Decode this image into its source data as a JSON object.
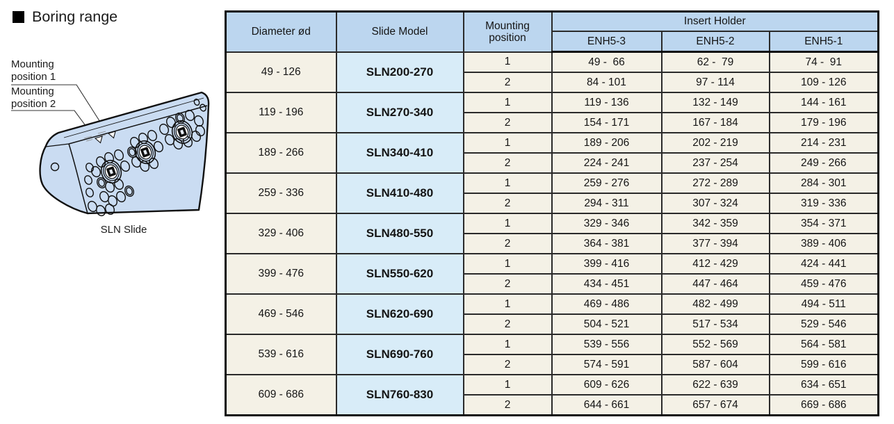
{
  "heading": {
    "text": "Boring range"
  },
  "illustration": {
    "label_position1_line1": "Mounting",
    "label_position1_line2": "position 1",
    "label_position2_line1": "Mounting",
    "label_position2_line2": "position 2",
    "caption": "SLN Slide"
  },
  "table": {
    "headers": {
      "diameter": "Diameter ød",
      "slide_model": "Slide Model",
      "mounting_line1": "Mounting",
      "mounting_line2": "position",
      "insert_holder": "Insert Holder",
      "enh_columns": [
        "ENH5-3",
        "ENH5-2",
        "ENH5-1"
      ]
    },
    "groups": [
      {
        "diameter": "49 - 126",
        "model": "SLN200-270",
        "rows": [
          {
            "position": "1",
            "values": [
              "49 -  66",
              "62 -  79",
              "74 -  91"
            ]
          },
          {
            "position": "2",
            "values": [
              "84 - 101",
              "97 - 114",
              "109 - 126"
            ]
          }
        ]
      },
      {
        "diameter": "119 - 196",
        "model": "SLN270-340",
        "rows": [
          {
            "position": "1",
            "values": [
              "119 - 136",
              "132 - 149",
              "144 - 161"
            ]
          },
          {
            "position": "2",
            "values": [
              "154 - 171",
              "167 - 184",
              "179 - 196"
            ]
          }
        ]
      },
      {
        "diameter": "189 - 266",
        "model": "SLN340-410",
        "rows": [
          {
            "position": "1",
            "values": [
              "189 - 206",
              "202 - 219",
              "214 - 231"
            ]
          },
          {
            "position": "2",
            "values": [
              "224 - 241",
              "237 - 254",
              "249 - 266"
            ]
          }
        ]
      },
      {
        "diameter": "259 - 336",
        "model": "SLN410-480",
        "rows": [
          {
            "position": "1",
            "values": [
              "259 - 276",
              "272 - 289",
              "284 - 301"
            ]
          },
          {
            "position": "2",
            "values": [
              "294 - 311",
              "307 - 324",
              "319 - 336"
            ]
          }
        ]
      },
      {
        "diameter": "329 - 406",
        "model": "SLN480-550",
        "rows": [
          {
            "position": "1",
            "values": [
              "329 - 346",
              "342 - 359",
              "354 - 371"
            ]
          },
          {
            "position": "2",
            "values": [
              "364 - 381",
              "377 - 394",
              "389 - 406"
            ]
          }
        ]
      },
      {
        "diameter": "399 - 476",
        "model": "SLN550-620",
        "rows": [
          {
            "position": "1",
            "values": [
              "399 - 416",
              "412 - 429",
              "424 - 441"
            ]
          },
          {
            "position": "2",
            "values": [
              "434 - 451",
              "447 - 464",
              "459 - 476"
            ]
          }
        ]
      },
      {
        "diameter": "469 - 546",
        "model": "SLN620-690",
        "rows": [
          {
            "position": "1",
            "values": [
              "469 - 486",
              "482 - 499",
              "494 - 511"
            ]
          },
          {
            "position": "2",
            "values": [
              "504 - 521",
              "517 - 534",
              "529 - 546"
            ]
          }
        ]
      },
      {
        "diameter": "539 - 616",
        "model": "SLN690-760",
        "rows": [
          {
            "position": "1",
            "values": [
              "539 - 556",
              "552 - 569",
              "564 - 581"
            ]
          },
          {
            "position": "2",
            "values": [
              "574 - 591",
              "587 - 604",
              "599 - 616"
            ]
          }
        ]
      },
      {
        "diameter": "609 - 686",
        "model": "SLN760-830",
        "rows": [
          {
            "position": "1",
            "values": [
              "609 - 626",
              "622 - 639",
              "634 - 651"
            ]
          },
          {
            "position": "2",
            "values": [
              "644 - 661",
              "657 - 674",
              "669 - 686"
            ]
          }
        ]
      }
    ]
  },
  "colors": {
    "header_blue": "#bcd6ef",
    "model_blue": "#d8ecf8",
    "cell_cream": "#f4f1e6",
    "slide_fill": "#cadcf2",
    "line_dark": "#111111",
    "line_minor": "#8f8f8f"
  }
}
